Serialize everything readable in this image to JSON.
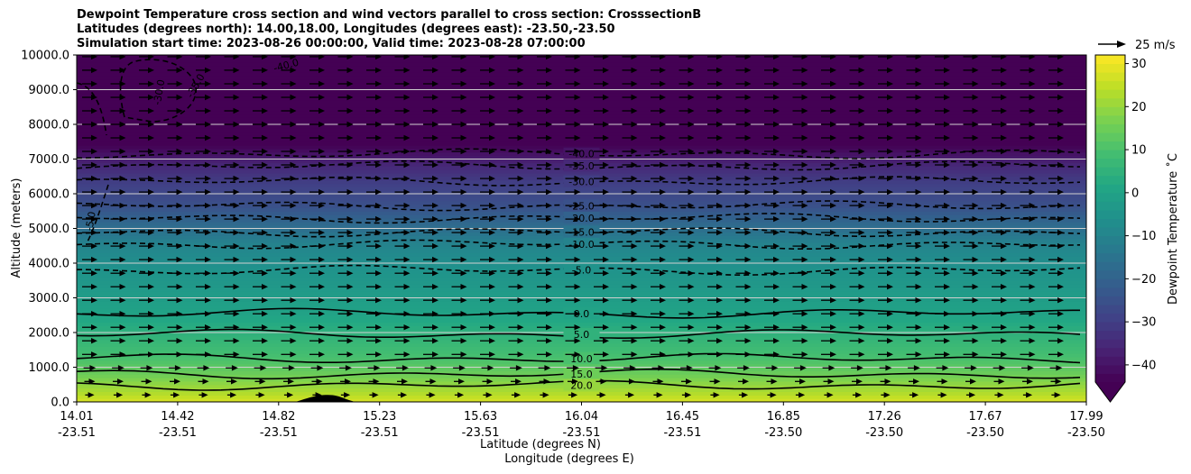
{
  "titles": [
    "Dewpoint Temperature cross section and wind vectors parallel to cross section: CrosssectionB",
    "Latitudes (degrees north): 14.00,18.00, Longitudes (degrees east): -23.50,-23.50",
    "Simulation start time: 2023-08-26 00:00:00, Valid time: 2023-08-28 07:00:00"
  ],
  "chart_data": {
    "type": "heatmap",
    "title": "Dewpoint Temperature cross section and wind vectors parallel to cross section: CrosssectionB",
    "ylabel": "Altitude (meters)",
    "xlabel_lat": "Latitude (degrees N)",
    "xlabel_lon": "Longitude (degrees E)",
    "ylim": [
      0,
      10000
    ],
    "yticks": [
      "0.0",
      "1000.0",
      "2000.0",
      "3000.0",
      "4000.0",
      "5000.0",
      "6000.0",
      "7000.0",
      "8000.0",
      "9000.0",
      "10000.0"
    ],
    "xticks_lat": [
      "14.01",
      "14.42",
      "14.82",
      "15.23",
      "15.63",
      "16.04",
      "16.45",
      "16.85",
      "17.26",
      "17.67",
      "17.99"
    ],
    "xticks_lon": [
      "-23.51",
      "-23.51",
      "-23.51",
      "-23.51",
      "-23.51",
      "-23.51",
      "-23.51",
      "-23.50",
      "-23.50",
      "-23.50",
      "-23.50"
    ],
    "grid": "horizontal",
    "colormap": "viridis",
    "colorbar": {
      "label": "Dewpoint Temperature ˚C",
      "ticks": [
        "−40",
        "−30",
        "−20",
        "−10",
        "0",
        "10",
        "20",
        "30"
      ],
      "range": [
        -44,
        32
      ],
      "extend": "min"
    },
    "quiver_key": "25 m/s",
    "contour_levels_dashed": [
      "-40.0",
      "-35.0",
      "-30.0",
      "-25.0",
      "-20.0",
      "-15.0",
      "-10.0",
      "-5.0"
    ],
    "contour_levels_solid": [
      "0.0",
      "5.0",
      "10.0",
      "15.0",
      "20.0"
    ],
    "contour_label_positions": "center (lat 16.04)",
    "contours_upper": [
      {
        "level": -40,
        "label": "-40.0",
        "alt": 7150
      },
      {
        "level": -35,
        "label": "-35.0",
        "alt": 6800
      },
      {
        "level": -30,
        "label": "-30.0",
        "alt": 6350
      },
      {
        "level": -25,
        "label": "-25.0",
        "alt": 5650
      },
      {
        "level": -20,
        "label": "-20.0",
        "alt": 5300
      },
      {
        "level": -15,
        "label": "-15.0",
        "alt": 4900
      },
      {
        "level": -10,
        "label": "-10.0",
        "alt": 4550
      },
      {
        "level": -5,
        "label": "-5.0",
        "alt": 3800
      },
      {
        "level": 0,
        "label": "0.0",
        "alt": 2550
      },
      {
        "level": 5,
        "label": "5.0",
        "alt": 1950
      },
      {
        "level": 10,
        "label": "10.0",
        "alt": 1250
      },
      {
        "level": 15,
        "label": "15.0",
        "alt": 800
      },
      {
        "level": 20,
        "label": "20.0",
        "alt": 480
      }
    ],
    "upper_left_labels": [
      "-40.0",
      "-35.0",
      "-30.0",
      "-5.0"
    ],
    "terrain_peak": {
      "lat": 15.0,
      "alt": 200
    }
  },
  "colors": {
    "viridis_low": "#440154",
    "viridis_mid": "#21918c",
    "viridis_high": "#fde725"
  }
}
